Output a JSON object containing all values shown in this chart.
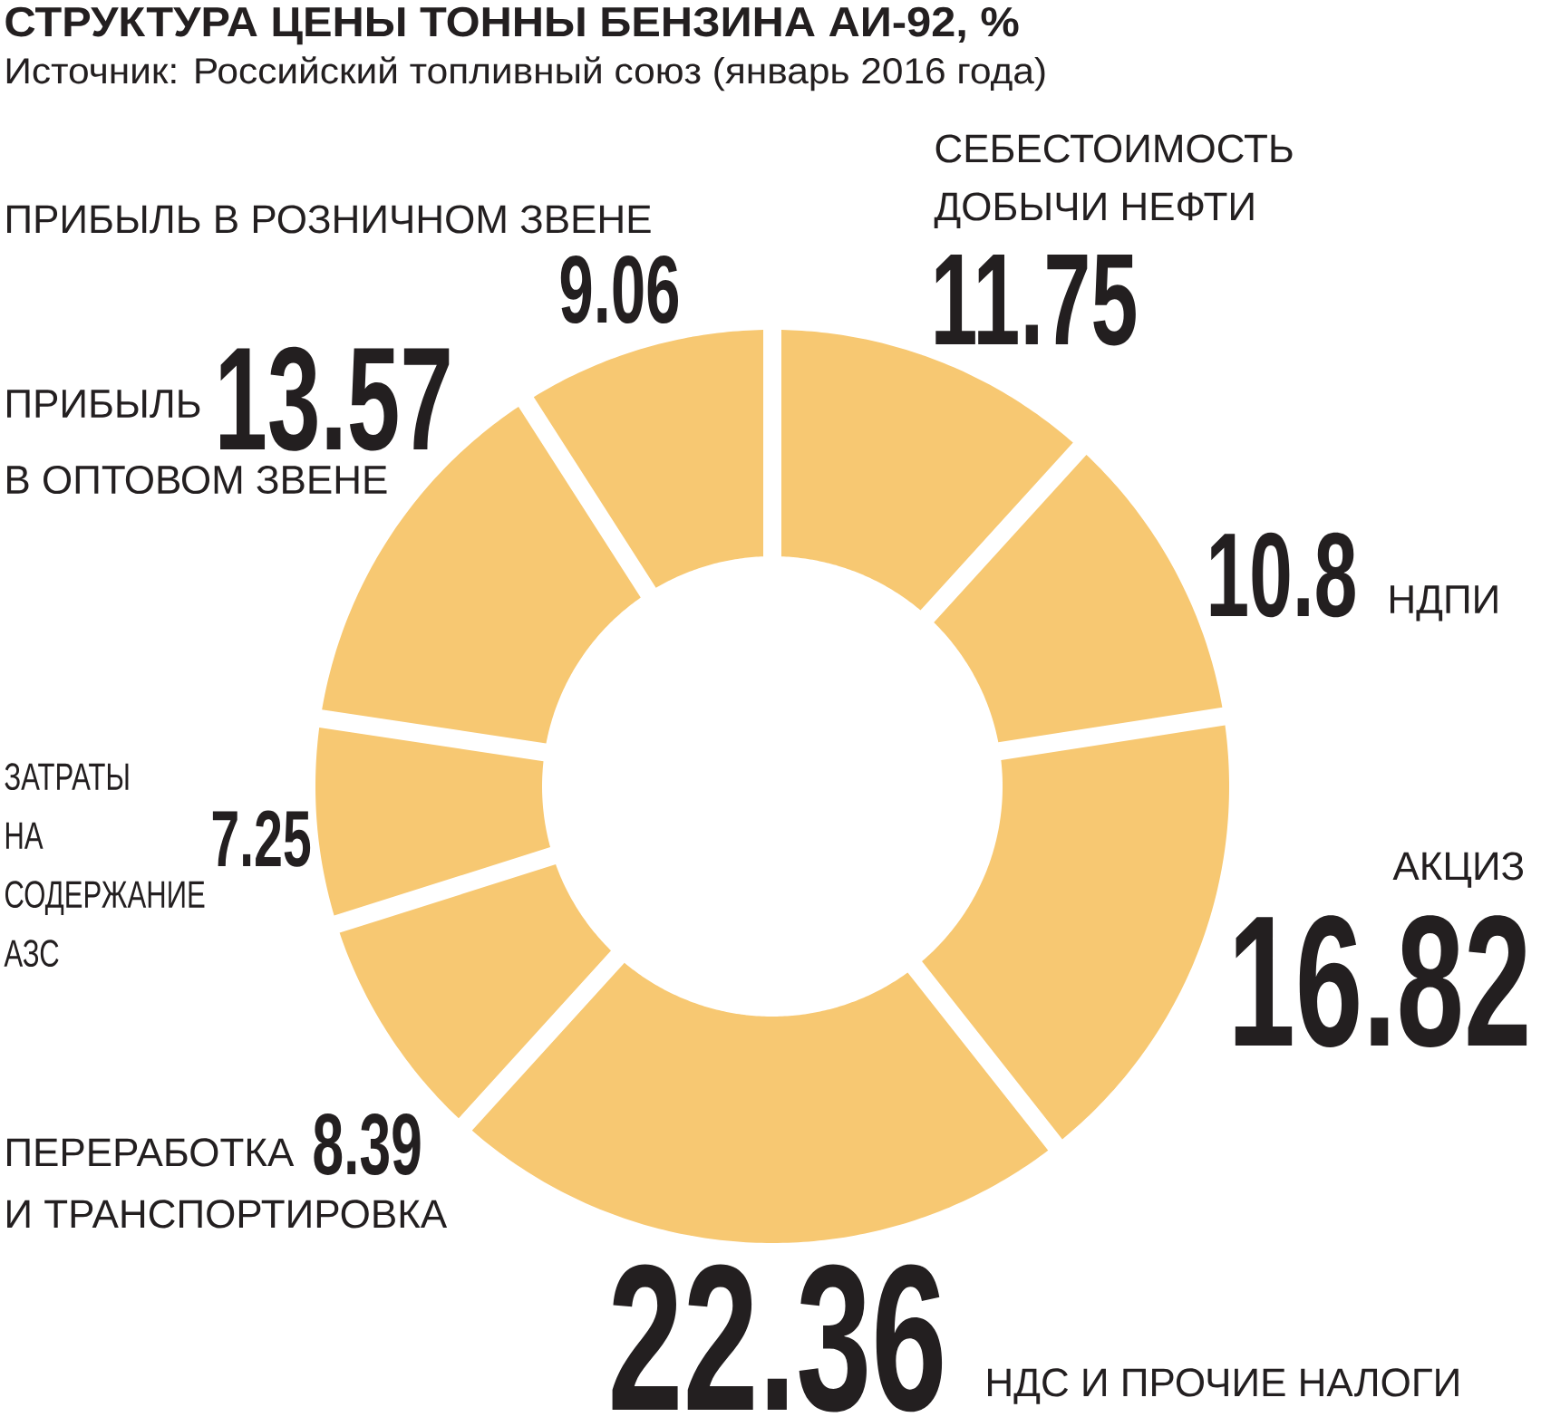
{
  "chart_data": {
    "type": "donut",
    "title": "СТРУКТУРА ЦЕНЫ ТОННЫ БЕНЗИНА АИ-92, %",
    "subtitle": "Источник: Российский топливный союз (январь 2016 года)",
    "categories": [
      "СЕБЕСТОИМОСТЬ ДОБЫЧИ НЕФТИ",
      "НДПИ",
      "АКЦИЗ",
      "НДС И ПРОЧИЕ НАЛОГИ",
      "ПЕРЕРАБОТКА И ТРАНСПОРТИРОВКА",
      "ЗАТРАТЫ НА СОДЕРЖАНИЕ АЗС",
      "ПРИБЫЛЬ В ОПТОВОМ ЗВЕНЕ",
      "ПРИБЫЛЬ В РОЗНИЧНОМ ЗВЕНЕ"
    ],
    "values": [
      11.75,
      10.8,
      16.82,
      22.36,
      8.39,
      7.25,
      13.57,
      9.06
    ],
    "colors": [
      "#f7c872",
      "#f7c872",
      "#f7c872",
      "#f7c872",
      "#f7c872",
      "#f7c872",
      "#f7c872",
      "#f7c872"
    ],
    "data_labels": true
  }
}
